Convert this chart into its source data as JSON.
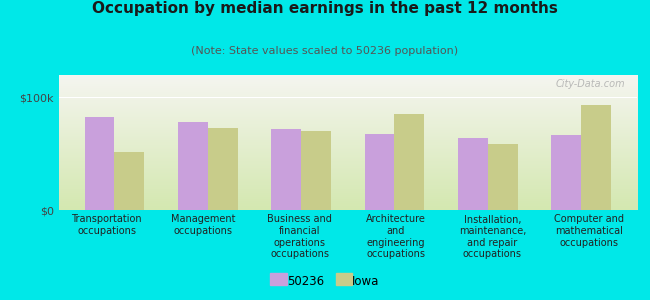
{
  "title": "Occupation by median earnings in the past 12 months",
  "subtitle": "(Note: State values scaled to 50236 population)",
  "categories": [
    "Transportation\noccupations",
    "Management\noccupations",
    "Business and\nfinancial\noperations\noccupations",
    "Architecture\nand\nengineering\noccupations",
    "Installation,\nmaintenance,\nand repair\noccupations",
    "Computer and\nmathematical\noccupations"
  ],
  "values_50236": [
    83000,
    78000,
    72000,
    68000,
    64000,
    67000
  ],
  "values_iowa": [
    52000,
    73000,
    70000,
    85000,
    59000,
    93000
  ],
  "color_50236": "#c9a0dc",
  "color_iowa": "#c8cc8a",
  "ylim": [
    0,
    120000
  ],
  "yticks": [
    0,
    100000
  ],
  "ytick_labels": [
    "$0",
    "$100k"
  ],
  "legend_50236": "50236",
  "legend_iowa": "Iowa",
  "chart_bg_top": "#f5f5f0",
  "chart_bg_bottom": "#d4e8b0",
  "outer_background": "#00e8e8",
  "watermark": "City-Data.com",
  "title_fontsize": 11,
  "subtitle_fontsize": 8,
  "axis_label_fontsize": 7,
  "legend_fontsize": 8.5
}
